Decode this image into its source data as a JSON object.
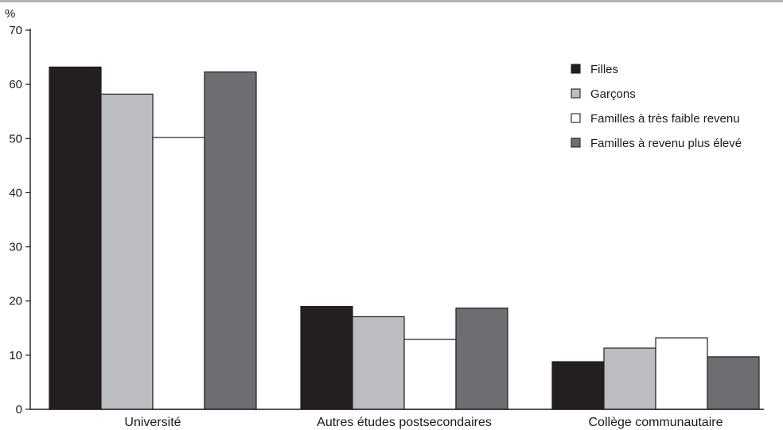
{
  "chart_data": {
    "type": "bar",
    "title": "",
    "ylabel": "%",
    "xlabel": "",
    "ylim": [
      0,
      70
    ],
    "yticks": [
      0,
      10,
      20,
      30,
      40,
      50,
      60,
      70
    ],
    "categories": [
      "Université",
      "Autres études postsecondaires",
      "Collège communautaire"
    ],
    "series": [
      {
        "name": "Filles",
        "color": "#231f20",
        "values": [
          63.2,
          19.0,
          8.8
        ]
      },
      {
        "name": "Garçons",
        "color": "#bcbdc0",
        "values": [
          58.2,
          17.1,
          11.3
        ]
      },
      {
        "name": "Familles à très faible revenu",
        "color": "#ffffff",
        "values": [
          50.2,
          12.9,
          13.2
        ]
      },
      {
        "name": "Familles à revenu plus élevé",
        "color": "#6d6e71",
        "values": [
          62.3,
          18.7,
          9.7
        ]
      }
    ],
    "legend_position": "top-right",
    "grid": false
  }
}
